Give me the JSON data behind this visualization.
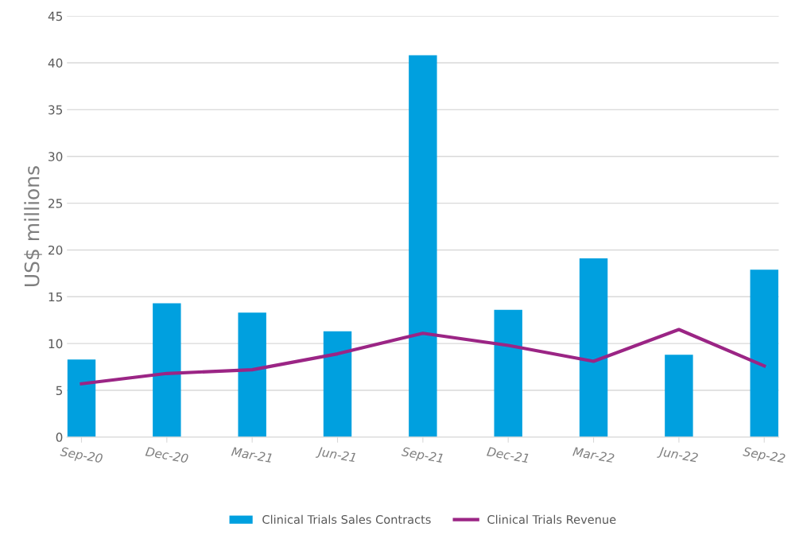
{
  "chart_data": {
    "type": "bar",
    "ylabel": "US$ millions",
    "categories": [
      "Sep-20",
      "Dec-20",
      "Mar-21",
      "Jun-21",
      "Sep-21",
      "Dec-21",
      "Mar-22",
      "Jun-22",
      "Sep-22"
    ],
    "series": [
      {
        "name": "Clinical Trials Sales Contracts",
        "color": "#00a0df",
        "values": [
          8.3,
          14.3,
          13.3,
          11.3,
          40.8,
          13.6,
          19.1,
          8.8,
          17.9
        ]
      },
      {
        "name": "Clinical Trials Revenue",
        "type": "line",
        "color": "#9b2585",
        "values": [
          5.7,
          6.8,
          7.2,
          8.9,
          11.1,
          9.8,
          8.1,
          11.5,
          7.6
        ]
      }
    ],
    "ylim": [
      0,
      45
    ],
    "yticks": [
      0,
      5,
      10,
      15,
      20,
      25,
      30,
      35,
      40,
      45
    ],
    "grid": "y",
    "legend": "bottom"
  }
}
